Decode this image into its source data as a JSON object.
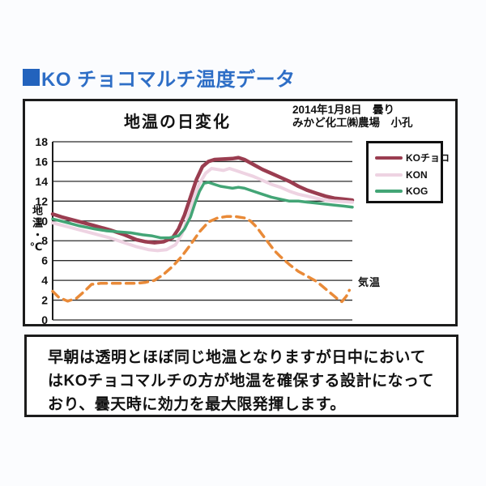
{
  "page": {
    "title": "KO チョコマルチ温度データ",
    "title_color": "#2e6ec6"
  },
  "chart": {
    "title": "地温の日変化",
    "meta_line1": "2014年1月8日　曇り",
    "meta_line2": "みかど化工㈱農場　小孔",
    "y_axis_label": "地温・℃",
    "air_temp_label": "気温",
    "legend": [
      {
        "label": "KOチョコ",
        "color": "#9a3d50"
      },
      {
        "label": "KON",
        "color": "#eed3e2"
      },
      {
        "label": "KOG",
        "color": "#43a576"
      }
    ]
  },
  "chart_data": {
    "type": "line",
    "title": "地温の日変化",
    "xlabel": "",
    "ylabel": "地温・℃",
    "ylim": [
      0,
      18
    ],
    "yticks": [
      0,
      2,
      4,
      6,
      8,
      10,
      12,
      14,
      16,
      18
    ],
    "x_unit": "time of day (axis unlabeled, 0-100 = left-right of plot)",
    "grid": "horizontal",
    "legend_position": "top-right",
    "series": [
      {
        "name": "KOチョコ",
        "color": "#9a3d50",
        "style": "solid",
        "width": 4.5,
        "points": [
          [
            0,
            10.7
          ],
          [
            3,
            10.4
          ],
          [
            8,
            10.0
          ],
          [
            13,
            9.6
          ],
          [
            19,
            9.1
          ],
          [
            24,
            8.6
          ],
          [
            28,
            8.1
          ],
          [
            31,
            7.9
          ],
          [
            34,
            7.8
          ],
          [
            37,
            7.9
          ],
          [
            40,
            8.3
          ],
          [
            42,
            9.2
          ],
          [
            44,
            10.6
          ],
          [
            46,
            12.4
          ],
          [
            48,
            14.2
          ],
          [
            50,
            15.5
          ],
          [
            52,
            16.0
          ],
          [
            54,
            16.2
          ],
          [
            57,
            16.25
          ],
          [
            60,
            16.3
          ],
          [
            62,
            16.4
          ],
          [
            64,
            16.2
          ],
          [
            67,
            15.7
          ],
          [
            70,
            15.2
          ],
          [
            73,
            14.8
          ],
          [
            76,
            14.4
          ],
          [
            79,
            14.0
          ],
          [
            82,
            13.5
          ],
          [
            85,
            13.1
          ],
          [
            88,
            12.8
          ],
          [
            91,
            12.5
          ],
          [
            94,
            12.3
          ],
          [
            97,
            12.2
          ],
          [
            100,
            12.1
          ]
        ]
      },
      {
        "name": "KON",
        "color": "#eed3e2",
        "style": "solid",
        "width": 4,
        "points": [
          [
            0,
            9.8
          ],
          [
            4,
            9.5
          ],
          [
            9,
            9.1
          ],
          [
            14,
            8.7
          ],
          [
            19,
            8.3
          ],
          [
            24,
            7.8
          ],
          [
            28,
            7.4
          ],
          [
            32,
            7.1
          ],
          [
            35,
            7.0
          ],
          [
            38,
            7.1
          ],
          [
            41,
            7.6
          ],
          [
            43,
            8.6
          ],
          [
            45,
            10.2
          ],
          [
            47,
            12.2
          ],
          [
            49,
            13.8
          ],
          [
            51,
            14.8
          ],
          [
            53,
            15.3
          ],
          [
            55,
            15.2
          ],
          [
            57,
            15.1
          ],
          [
            59,
            15.3
          ],
          [
            61,
            15.1
          ],
          [
            64,
            14.8
          ],
          [
            67,
            14.5
          ],
          [
            70,
            14.1
          ],
          [
            73,
            13.7
          ],
          [
            76,
            13.4
          ],
          [
            79,
            13.0
          ],
          [
            82,
            12.7
          ],
          [
            85,
            12.5
          ],
          [
            88,
            12.3
          ],
          [
            91,
            12.1
          ],
          [
            94,
            12.0
          ],
          [
            97,
            11.95
          ],
          [
            100,
            11.9
          ]
        ]
      },
      {
        "name": "KOG",
        "color": "#43a576",
        "style": "solid",
        "width": 3.5,
        "points": [
          [
            0,
            10.2
          ],
          [
            4,
            9.9
          ],
          [
            9,
            9.5
          ],
          [
            14,
            9.2
          ],
          [
            18,
            9.0
          ],
          [
            22,
            8.9
          ],
          [
            26,
            8.8
          ],
          [
            30,
            8.6
          ],
          [
            33,
            8.5
          ],
          [
            36,
            8.3
          ],
          [
            39,
            8.3
          ],
          [
            42,
            8.5
          ],
          [
            44,
            9.2
          ],
          [
            46,
            10.4
          ],
          [
            47.5,
            11.8
          ],
          [
            49,
            13.0
          ],
          [
            50.5,
            13.8
          ],
          [
            52,
            13.9
          ],
          [
            54,
            13.7
          ],
          [
            56,
            13.5
          ],
          [
            58,
            13.4
          ],
          [
            60,
            13.3
          ],
          [
            62,
            13.4
          ],
          [
            64,
            13.3
          ],
          [
            67,
            13.0
          ],
          [
            70,
            12.7
          ],
          [
            73,
            12.4
          ],
          [
            76,
            12.2
          ],
          [
            79,
            12.0
          ],
          [
            82,
            12.0
          ],
          [
            85,
            11.9
          ],
          [
            88,
            11.8
          ],
          [
            91,
            11.7
          ],
          [
            94,
            11.6
          ],
          [
            97,
            11.5
          ],
          [
            100,
            11.4
          ]
        ]
      },
      {
        "name": "気温",
        "color": "#e98a38",
        "style": "dashed",
        "width": 3.5,
        "points": [
          [
            0,
            2.9
          ],
          [
            2,
            2.3
          ],
          [
            5,
            1.9
          ],
          [
            8,
            2.2
          ],
          [
            11,
            3.0
          ],
          [
            13,
            3.6
          ],
          [
            16,
            3.7
          ],
          [
            20,
            3.7
          ],
          [
            24,
            3.7
          ],
          [
            28,
            3.7
          ],
          [
            31,
            3.8
          ],
          [
            34,
            4.0
          ],
          [
            37,
            4.6
          ],
          [
            40,
            5.4
          ],
          [
            43,
            6.4
          ],
          [
            46,
            7.6
          ],
          [
            49,
            8.9
          ],
          [
            52,
            9.9
          ],
          [
            55,
            10.3
          ],
          [
            58,
            10.45
          ],
          [
            61,
            10.45
          ],
          [
            64,
            10.3
          ],
          [
            66,
            10.0
          ],
          [
            68,
            9.4
          ],
          [
            70,
            8.6
          ],
          [
            72,
            7.8
          ],
          [
            74,
            7.0
          ],
          [
            76,
            6.4
          ],
          [
            79,
            5.6
          ],
          [
            82,
            4.9
          ],
          [
            85,
            4.4
          ],
          [
            88,
            3.9
          ],
          [
            90,
            3.4
          ],
          [
            92,
            2.9
          ],
          [
            94,
            2.4
          ],
          [
            95.5,
            2.0
          ],
          [
            96.5,
            1.85
          ],
          [
            98,
            2.4
          ],
          [
            99,
            3.0
          ]
        ]
      }
    ]
  },
  "note": {
    "line1": "早朝は透明とほぼ同じ地温となりますが日中において",
    "line2": "はKOチョコマルチの方が地温を確保する設計になって",
    "line3": "おり、曇天時に効力を最大限発揮します。"
  }
}
